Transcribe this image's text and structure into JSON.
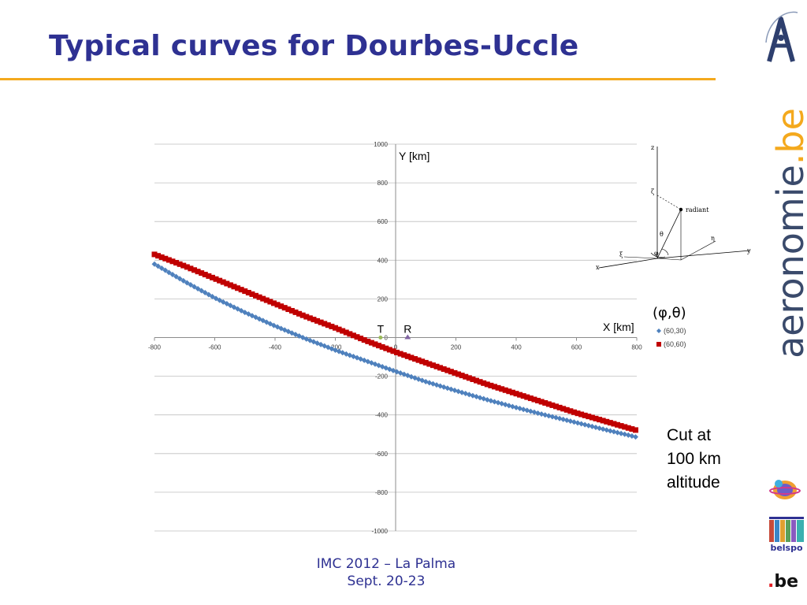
{
  "slide": {
    "title": "Typical curves for Dourbes-Uccle",
    "footer_line1": "IMC 2012 – La Palma",
    "footer_line2": "Sept. 20-23",
    "cut_note": [
      "Cut at",
      "100 km",
      "altitude"
    ],
    "legend_heading": "(φ,θ)",
    "accent_color": "#f4a91d",
    "title_color": "#2e3192"
  },
  "branding": {
    "word_main": "aeronomie",
    "word_tld": ".be",
    "belspo_text": "belspo",
    "be_text": "be"
  },
  "diagram": {
    "labels": {
      "z": "z",
      "zeta": "ζ",
      "radiant": "radiant",
      "theta": "θ",
      "phi": "φ",
      "eta": "η",
      "y": "y",
      "xi": "ξ",
      "x": "x"
    }
  },
  "chart_data": {
    "type": "scatter",
    "xlabel": "X [km]",
    "ylabel": "Y [km]",
    "xlim": [
      -800,
      800
    ],
    "ylim": [
      -1000,
      1000
    ],
    "x_tick_labels": [
      "-800",
      "-600",
      "-400",
      "-200",
      "0",
      "200",
      "400",
      "600",
      "800"
    ],
    "y_tick_labels": [
      "-1000",
      "-800",
      "-600",
      "-400",
      "-200",
      "0",
      "200",
      "400",
      "600",
      "800",
      "1000"
    ],
    "x_ticks": [
      -800,
      -600,
      -400,
      -200,
      0,
      200,
      400,
      600,
      800
    ],
    "y_ticks": [
      -1000,
      -800,
      -600,
      -400,
      -200,
      0,
      200,
      400,
      600,
      800,
      1000
    ],
    "grid": "horizontal",
    "legend_position": "right",
    "series": [
      {
        "name": "(60,30)",
        "color": "#4f81bd",
        "marker": "diamond",
        "x": [
          -800,
          -700,
          -600,
          -500,
          -400,
          -300,
          -200,
          -100,
          0,
          100,
          200,
          300,
          400,
          500,
          600,
          700,
          800
        ],
        "y": [
          380,
          290,
          205,
          130,
          60,
          -5,
          -65,
          -120,
          -175,
          -228,
          -275,
          -320,
          -362,
          -402,
          -440,
          -478,
          -515
        ]
      },
      {
        "name": "(60,60)",
        "color": "#c00000",
        "marker": "square",
        "x": [
          -800,
          -700,
          -600,
          -500,
          -400,
          -300,
          -200,
          -100,
          0,
          100,
          200,
          300,
          400,
          500,
          600,
          700,
          800
        ],
        "y": [
          430,
          370,
          305,
          240,
          175,
          110,
          50,
          -15,
          -75,
          -130,
          -185,
          -240,
          -290,
          -340,
          -390,
          -435,
          -480
        ]
      }
    ],
    "markers": [
      {
        "label": "T",
        "x": -50,
        "y": 0,
        "color": "#9bbb59",
        "shape": "circle"
      },
      {
        "label": "R",
        "x": 40,
        "y": 0,
        "color": "#8064a2",
        "shape": "triangle"
      }
    ]
  }
}
